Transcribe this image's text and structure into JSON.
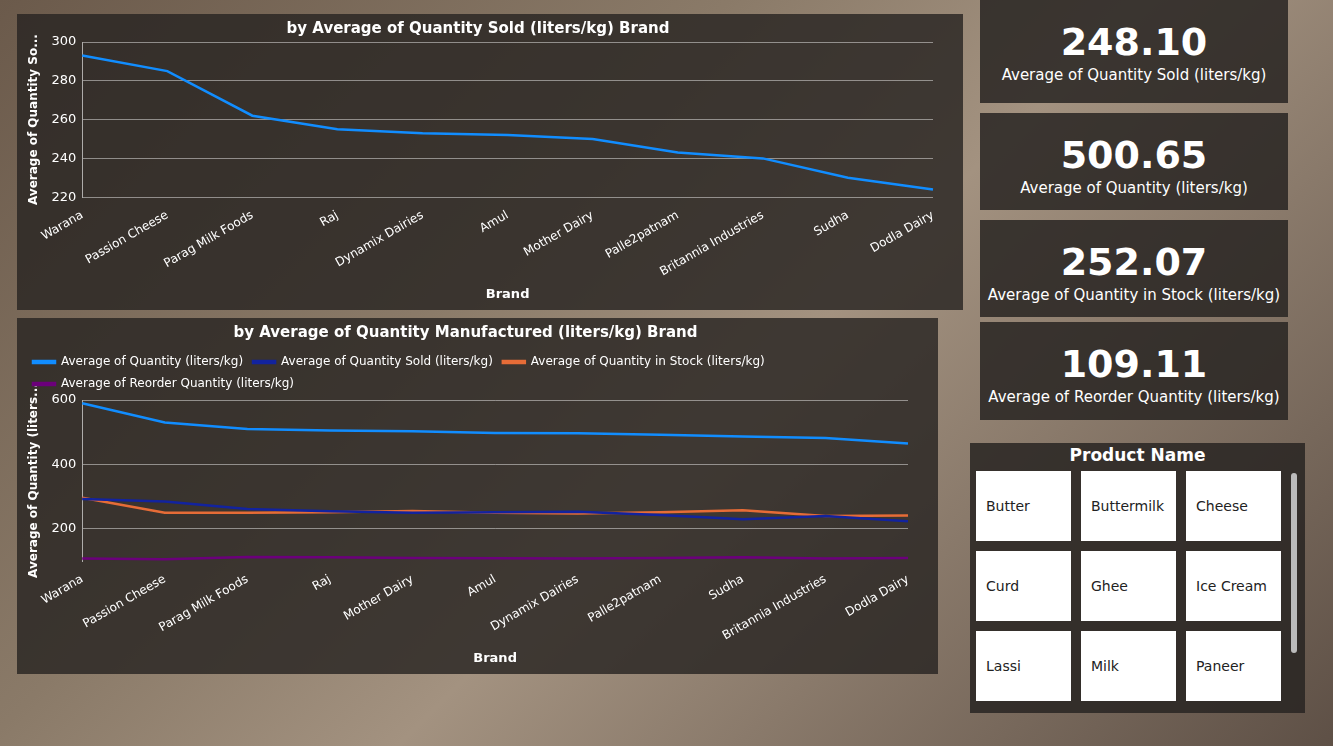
{
  "chart_data": [
    {
      "type": "line",
      "title": "by Average of Quantity Sold (liters/kg) Brand",
      "x_label": "Brand",
      "y_label": "Average of Quantity So...",
      "categories": [
        "Warana",
        "Passion Cheese",
        "Parag Milk Foods",
        "Raj",
        "Dynamix Dairies",
        "Amul",
        "Mother Dairy",
        "Palle2patnam",
        "Britannia Industries",
        "Sudha",
        "Dodla Dairy"
      ],
      "series": [
        {
          "name": "Average of Quantity Sold (liters/kg)",
          "color": "#118DFF",
          "values": [
            293,
            285,
            262,
            255,
            253,
            252,
            250,
            243,
            240,
            230,
            224
          ]
        }
      ],
      "ylim": [
        220,
        300
      ],
      "yticks": [
        220,
        240,
        260,
        280,
        300
      ],
      "grid": true
    },
    {
      "type": "line",
      "title": "by Average of Quantity Manufactured (liters/kg) Brand",
      "x_label": "Brand",
      "y_label": "Average of Quantity (liters...",
      "categories": [
        "Warana",
        "Passion Cheese",
        "Parag Milk Foods",
        "Raj",
        "Mother Dairy",
        "Amul",
        "Dynamix Dairies",
        "Palle2patnam",
        "Sudha",
        "Britannia Industries",
        "Dodla Dairy"
      ],
      "series": [
        {
          "name": "Average of Quantity (liters/kg)",
          "color": "#118DFF",
          "values": [
            590,
            530,
            510,
            505,
            503,
            498,
            497,
            492,
            487,
            482,
            465
          ]
        },
        {
          "name": "Average of Quantity Sold (liters/kg)",
          "color": "#12239E",
          "values": [
            293,
            285,
            262,
            255,
            250,
            252,
            253,
            243,
            230,
            240,
            224
          ]
        },
        {
          "name": "Average of Quantity in Stock (liters/kg)",
          "color": "#E66C37",
          "values": [
            297,
            250,
            250,
            252,
            256,
            250,
            248,
            252,
            258,
            240,
            242
          ]
        },
        {
          "name": "Average of Reorder Quantity (liters/kg)",
          "color": "#6B007B",
          "values": [
            108,
            106,
            113,
            112,
            110,
            109,
            108,
            110,
            112,
            108,
            110
          ]
        }
      ],
      "ylim": [
        100,
        600
      ],
      "yticks": [
        200,
        400,
        600
      ],
      "grid": true,
      "legend": "top-left"
    }
  ],
  "cards": [
    {
      "value": "248.10",
      "label": "Average of Quantity Sold (liters/kg)"
    },
    {
      "value": "500.65",
      "label": "Average of Quantity (liters/kg)"
    },
    {
      "value": "252.07",
      "label": "Average of Quantity in Stock (liters/kg)"
    },
    {
      "value": "109.11",
      "label": "Average of Reorder Quantity (liters/kg)"
    }
  ],
  "slicer": {
    "title": "Product Name",
    "items": [
      "Butter",
      "Buttermilk",
      "Cheese",
      "Curd",
      "Ghee",
      "Ice Cream",
      "Lassi",
      "Milk",
      "Paneer"
    ]
  }
}
